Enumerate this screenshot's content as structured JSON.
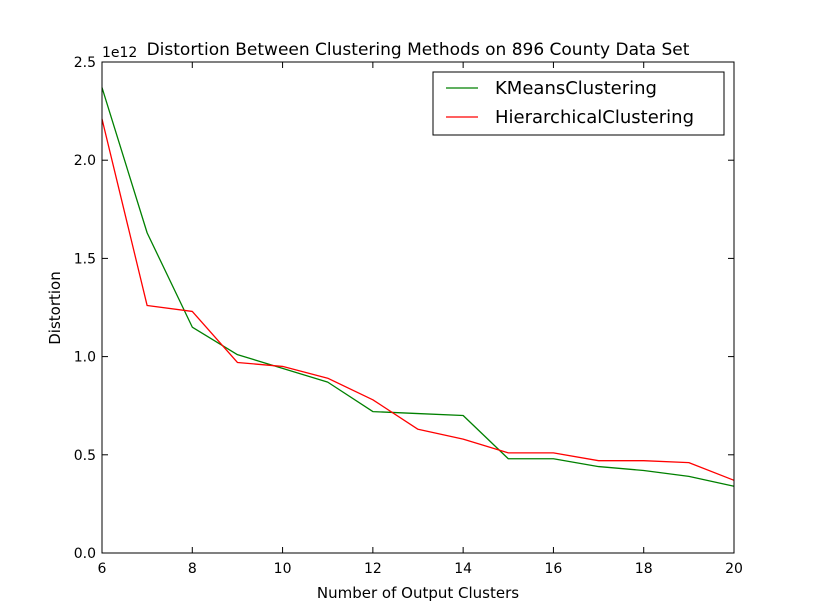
{
  "chart_data": {
    "type": "line",
    "title": "Distortion Between Clustering Methods on 896 County Data Set",
    "xlabel": "Number of Output Clusters",
    "ylabel": "Distortion",
    "y_offset_label": "1e12",
    "xlim": [
      6,
      20
    ],
    "ylim": [
      0,
      2.5
    ],
    "xticks": [
      6,
      8,
      10,
      12,
      14,
      16,
      18,
      20
    ],
    "xtick_labels": [
      "6",
      "8",
      "10",
      "12",
      "14",
      "16",
      "18",
      "20"
    ],
    "yticks": [
      0.0,
      0.5,
      1.0,
      1.5,
      2.0,
      2.5
    ],
    "ytick_labels": [
      "0.0",
      "0.5",
      "1.0",
      "1.5",
      "2.0",
      "2.5"
    ],
    "grid": false,
    "legend_position": "top-right",
    "x": [
      6,
      7,
      8,
      9,
      10,
      11,
      12,
      13,
      14,
      15,
      16,
      17,
      18,
      19,
      20
    ],
    "series": [
      {
        "name": "KMeansClustering",
        "color": "#008000",
        "values": [
          2.37,
          1.63,
          1.15,
          1.01,
          0.94,
          0.87,
          0.72,
          0.71,
          0.7,
          0.48,
          0.48,
          0.44,
          0.42,
          0.39,
          0.34
        ]
      },
      {
        "name": "HierarchicalClustering",
        "color": "#ff0000",
        "values": [
          2.21,
          1.26,
          1.23,
          0.97,
          0.95,
          0.89,
          0.78,
          0.63,
          0.58,
          0.51,
          0.51,
          0.47,
          0.47,
          0.46,
          0.37
        ]
      }
    ]
  }
}
